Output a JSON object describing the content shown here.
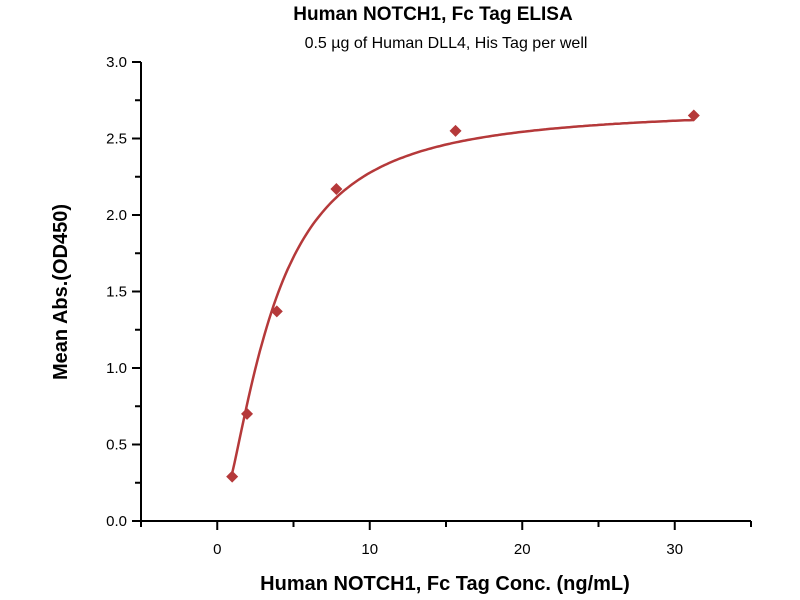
{
  "chart_data": {
    "type": "scatter",
    "title": "Human NOTCH1, Fc Tag ELISA",
    "subtitle": "0.5 µg of Human DLL4, His Tag per well",
    "xlabel": "Human NOTCH1, Fc Tag Conc. (ng/mL)",
    "ylabel": "Mean Abs.(OD450)",
    "xlim": [
      -5,
      35
    ],
    "ylim": [
      0,
      3.0
    ],
    "xticks": [
      "0",
      "10",
      "20",
      "30"
    ],
    "xtick_values": [
      0,
      10,
      20,
      30
    ],
    "yticks": [
      "0.0",
      "0.5",
      "1.0",
      "1.5",
      "2.0",
      "2.5",
      "3.0"
    ],
    "ytick_values": [
      0,
      0.5,
      1.0,
      1.5,
      2.0,
      2.5,
      3.0
    ],
    "grid": false,
    "marker": "diamond",
    "fit_curve": true,
    "color": "#b5393a",
    "series": [
      {
        "x": [
          0.977,
          1.953,
          3.906,
          7.8125,
          15.625,
          31.25
        ],
        "y": [
          0.29,
          0.7,
          1.37,
          2.17,
          2.55,
          2.65
        ]
      }
    ]
  }
}
